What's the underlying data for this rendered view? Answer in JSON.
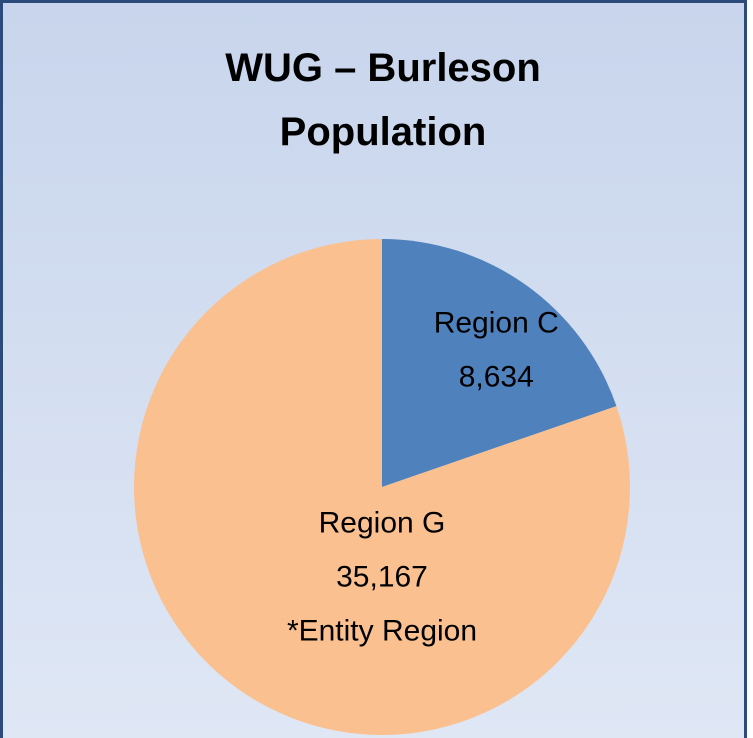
{
  "chart_data": {
    "type": "pie",
    "title": "WUG – Burleson Population",
    "categories": [
      "Region C",
      "Region G"
    ],
    "values": [
      8634,
      35167
    ],
    "value_labels": [
      "8,634",
      "35,167"
    ],
    "colors": [
      "#4f81bd",
      "#fac090"
    ],
    "annotation": "*Entity Region"
  }
}
